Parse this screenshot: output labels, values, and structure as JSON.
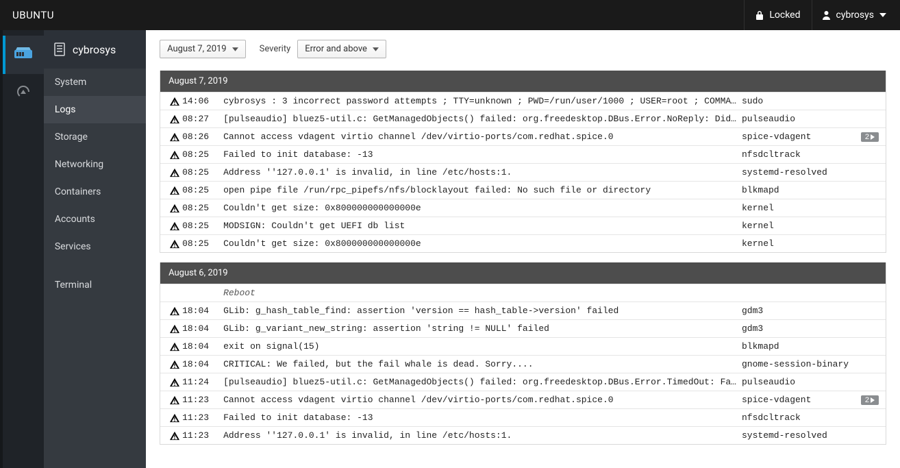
{
  "colors": {
    "topbar_bg": "#1a1a1a",
    "rail_bg": "#1f2328",
    "sidebar_bg": "#353a40",
    "sidebar_active_bg": "#42474e",
    "accent": "#0099d3",
    "group_head_bg": "#4d4d4d",
    "badge_bg": "#8a8d90",
    "row_border": "#e5e5e5"
  },
  "topbar": {
    "brand": "UBUNTU",
    "locked_label": "Locked",
    "user_label": "cybrosys"
  },
  "rail": {
    "items": [
      {
        "name": "dashboard-icon",
        "active": true
      },
      {
        "name": "gauge-icon",
        "active": false
      }
    ]
  },
  "sidebar": {
    "host": "cybrosys",
    "items": [
      {
        "label": "System",
        "active": false
      },
      {
        "label": "Logs",
        "active": true
      },
      {
        "label": "Storage",
        "active": false
      },
      {
        "label": "Networking",
        "active": false
      },
      {
        "label": "Containers",
        "active": false
      },
      {
        "label": "Accounts",
        "active": false
      },
      {
        "label": "Services",
        "active": false
      }
    ],
    "extra": [
      {
        "label": "Terminal",
        "active": false
      }
    ]
  },
  "filters": {
    "date_label": "August 7, 2019",
    "severity_text": "Severity",
    "severity_value": "Error and above"
  },
  "log_groups": [
    {
      "date": "August 7, 2019",
      "rows": [
        {
          "time": "14:06",
          "msg": "cybrosys : 3 incorrect password attempts ; TTY=unknown ; PWD=/run/user/1000 ; USER=root ; COMMA…",
          "service": "sudo",
          "badge": ""
        },
        {
          "time": "08:27",
          "msg": "[pulseaudio] bluez5-util.c: GetManagedObjects() failed: org.freedesktop.DBus.Error.NoReply: Did…",
          "service": "pulseaudio",
          "badge": ""
        },
        {
          "time": "08:26",
          "msg": "Cannot access vdagent virtio channel /dev/virtio-ports/com.redhat.spice.0",
          "service": "spice-vdagent",
          "badge": "2"
        },
        {
          "time": "08:25",
          "msg": "Failed to init database: -13",
          "service": "nfsdcltrack",
          "badge": ""
        },
        {
          "time": "08:25",
          "msg": "Address ''127.0.0.1' is invalid, in line /etc/hosts:1.",
          "service": "systemd-resolved",
          "badge": ""
        },
        {
          "time": "08:25",
          "msg": "open pipe file /run/rpc_pipefs/nfs/blocklayout failed: No such file or directory",
          "service": "blkmapd",
          "badge": ""
        },
        {
          "time": "08:25",
          "msg": "Couldn't get size: 0x800000000000000e",
          "service": "kernel",
          "badge": ""
        },
        {
          "time": "08:25",
          "msg": "MODSIGN: Couldn't get UEFI db list",
          "service": "kernel",
          "badge": ""
        },
        {
          "time": "08:25",
          "msg": "Couldn't get size: 0x800000000000000e",
          "service": "kernel",
          "badge": ""
        }
      ]
    },
    {
      "date": "August 6, 2019",
      "rows": [
        {
          "reboot": true,
          "label": "Reboot"
        },
        {
          "time": "18:04",
          "msg": "GLib: g_hash_table_find: assertion 'version == hash_table->version' failed",
          "service": "gdm3",
          "badge": ""
        },
        {
          "time": "18:04",
          "msg": "GLib: g_variant_new_string: assertion 'string != NULL' failed",
          "service": "gdm3",
          "badge": ""
        },
        {
          "time": "18:04",
          "msg": "exit on signal(15)",
          "service": "blkmapd",
          "badge": ""
        },
        {
          "time": "18:04",
          "msg": "CRITICAL: We failed, but the fail whale is dead. Sorry....",
          "service": "gnome-session-binary",
          "badge": ""
        },
        {
          "time": "11:24",
          "msg": "[pulseaudio] bluez5-util.c: GetManagedObjects() failed: org.freedesktop.DBus.Error.TimedOut: Fa…",
          "service": "pulseaudio",
          "badge": ""
        },
        {
          "time": "11:23",
          "msg": "Cannot access vdagent virtio channel /dev/virtio-ports/com.redhat.spice.0",
          "service": "spice-vdagent",
          "badge": "2"
        },
        {
          "time": "11:23",
          "msg": "Failed to init database: -13",
          "service": "nfsdcltrack",
          "badge": ""
        },
        {
          "time": "11:23",
          "msg": "Address ''127.0.0.1' is invalid, in line /etc/hosts:1.",
          "service": "systemd-resolved",
          "badge": ""
        }
      ]
    }
  ]
}
